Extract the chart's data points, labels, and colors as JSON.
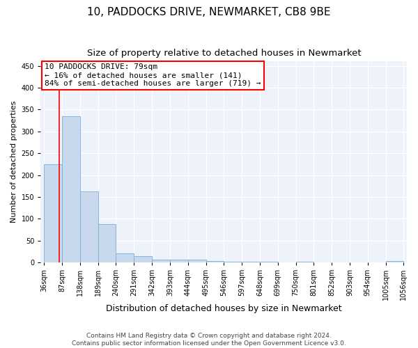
{
  "title": "10, PADDOCKS DRIVE, NEWMARKET, CB8 9BE",
  "subtitle": "Size of property relative to detached houses in Newmarket",
  "xlabel": "Distribution of detached houses by size in Newmarket",
  "ylabel": "Number of detached properties",
  "bar_edges": [
    36,
    87,
    138,
    189,
    240,
    291,
    342,
    393,
    444,
    495,
    546,
    597,
    648,
    699,
    750,
    801,
    852,
    903,
    954,
    1005,
    1056
  ],
  "bar_heights": [
    225,
    335,
    163,
    87,
    21,
    14,
    6,
    7,
    7,
    4,
    2,
    2,
    2,
    0,
    1,
    0,
    0,
    0,
    0,
    3
  ],
  "bar_color": "#c8d9ee",
  "bar_edge_color": "#7aafd4",
  "property_line_x": 79,
  "property_line_color": "red",
  "annotation_text": "10 PADDOCKS DRIVE: 79sqm\n← 16% of detached houses are smaller (141)\n84% of semi-detached houses are larger (719) →",
  "annotation_box_color": "white",
  "annotation_box_edgecolor": "red",
  "ylim": [
    0,
    460
  ],
  "yticks": [
    0,
    50,
    100,
    150,
    200,
    250,
    300,
    350,
    400,
    450
  ],
  "background_color": "#eef2fb",
  "grid_color": "white",
  "footer_text": "Contains HM Land Registry data © Crown copyright and database right 2024.\nContains public sector information licensed under the Open Government Licence v3.0.",
  "title_fontsize": 11,
  "subtitle_fontsize": 9.5,
  "xlabel_fontsize": 9,
  "ylabel_fontsize": 8,
  "tick_fontsize": 7,
  "annotation_fontsize": 8,
  "footer_fontsize": 6.5
}
